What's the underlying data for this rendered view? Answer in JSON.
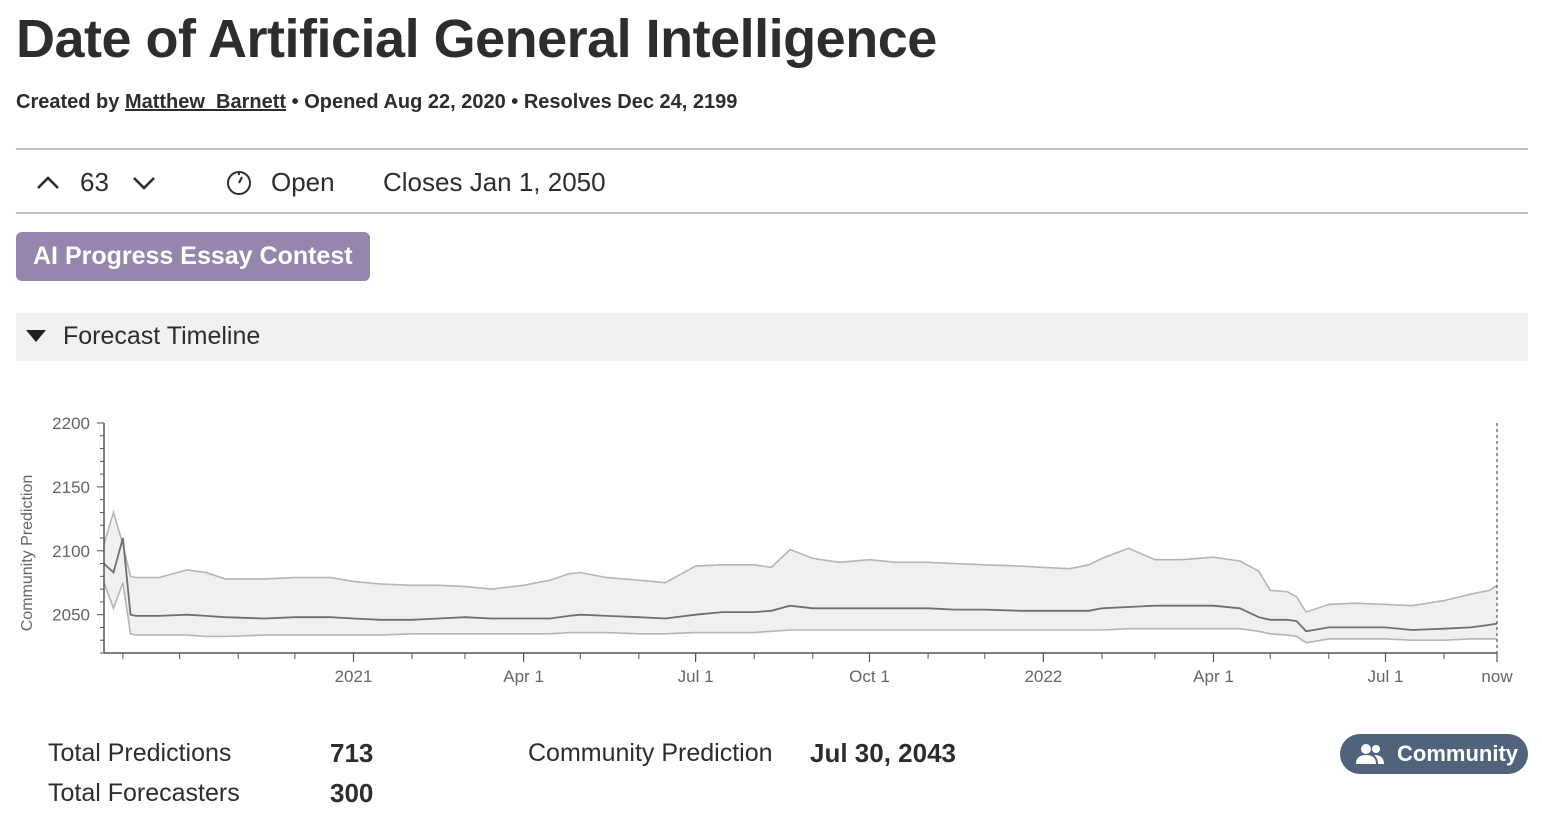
{
  "header": {
    "title": "Date of Artificial General Intelligence",
    "created_prefix": "Created by ",
    "author": "Matthew_Barnett",
    "opened": " • Opened Aug 22, 2020 • Resolves Dec 24, 2199"
  },
  "status_bar": {
    "votes": "63",
    "status": "Open",
    "closes": "Closes Jan 1, 2050"
  },
  "tag": {
    "label": "AI Progress Essay Contest"
  },
  "section": {
    "title": "Forecast Timeline"
  },
  "stats": {
    "total_predictions_label": "Total Predictions",
    "total_predictions": "713",
    "total_forecasters_label": "Total Forecasters",
    "total_forecasters": "300",
    "community_prediction_label": "Community Prediction",
    "community_prediction": "Jul 30, 2043",
    "community_button": "Community"
  },
  "colors": {
    "tag": "#9586ad",
    "community_button": "#4f647a",
    "median_line": "#6f6f6f",
    "band_line": "#b5b5b5",
    "band_fill": "#f0f0f0"
  },
  "chart_data": {
    "type": "area",
    "ylabel": "Community Prediction",
    "yticks": [
      2050,
      2100,
      2150,
      2200
    ],
    "ylim": [
      2020,
      2200
    ],
    "xlim": [
      "2020-08-22",
      "2022-08-29"
    ],
    "xticks": [
      {
        "date": "2021-01-01",
        "label": "2021"
      },
      {
        "date": "2021-04-01",
        "label": "Apr 1"
      },
      {
        "date": "2021-07-01",
        "label": "Jul 1"
      },
      {
        "date": "2021-10-01",
        "label": "Oct 1"
      },
      {
        "date": "2022-01-01",
        "label": "2022"
      },
      {
        "date": "2022-04-01",
        "label": "Apr 1"
      },
      {
        "date": "2022-07-01",
        "label": "Jul 1"
      },
      {
        "date": "2022-08-29",
        "label": "now"
      }
    ],
    "x": [
      "2020-08-22",
      "2020-08-27",
      "2020-09-01",
      "2020-09-05",
      "2020-09-08",
      "2020-09-20",
      "2020-10-05",
      "2020-10-15",
      "2020-10-25",
      "2020-11-15",
      "2020-12-01",
      "2020-12-20",
      "2021-01-01",
      "2021-01-15",
      "2021-02-01",
      "2021-02-15",
      "2021-03-01",
      "2021-03-15",
      "2021-04-01",
      "2021-04-15",
      "2021-04-25",
      "2021-05-01",
      "2021-05-15",
      "2021-06-01",
      "2021-06-15",
      "2021-07-01",
      "2021-07-15",
      "2021-08-01",
      "2021-08-10",
      "2021-08-20",
      "2021-09-01",
      "2021-09-15",
      "2021-10-01",
      "2021-10-15",
      "2021-11-01",
      "2021-11-15",
      "2021-12-01",
      "2021-12-20",
      "2022-01-01",
      "2022-01-15",
      "2022-01-25",
      "2022-02-01",
      "2022-02-15",
      "2022-03-01",
      "2022-03-15",
      "2022-04-01",
      "2022-04-15",
      "2022-04-25",
      "2022-05-01",
      "2022-05-10",
      "2022-05-15",
      "2022-05-20",
      "2022-06-01",
      "2022-06-15",
      "2022-07-01",
      "2022-07-15",
      "2022-08-01",
      "2022-08-15",
      "2022-08-25",
      "2022-08-29"
    ],
    "series": [
      {
        "values": [
          2105,
          2130,
          2105,
          2080,
          2079,
          2079,
          2085,
          2083,
          2078,
          2078,
          2079,
          2079,
          2076,
          2074,
          2073,
          2073,
          2072,
          2070,
          2073,
          2077,
          2082,
          2083,
          2079,
          2077,
          2075,
          2088,
          2089,
          2089,
          2087,
          2101,
          2094,
          2091,
          2093,
          2091,
          2091,
          2090,
          2089,
          2088,
          2087,
          2086,
          2089,
          2094,
          2102,
          2093,
          2093,
          2095,
          2092,
          2084,
          2069,
          2068,
          2064,
          2052,
          2058,
          2059,
          2058,
          2057,
          2061,
          2066,
          2069,
          2073
        ]
      },
      {
        "values": [
          2090,
          2083,
          2110,
          2050,
          2049,
          2049,
          2050,
          2049,
          2048,
          2047,
          2048,
          2048,
          2047,
          2046,
          2046,
          2047,
          2048,
          2047,
          2047,
          2047,
          2049,
          2050,
          2049,
          2048,
          2047,
          2050,
          2052,
          2052,
          2053,
          2057,
          2055,
          2055,
          2055,
          2055,
          2055,
          2054,
          2054,
          2053,
          2053,
          2053,
          2053,
          2055,
          2056,
          2057,
          2057,
          2057,
          2055,
          2048,
          2046,
          2046,
          2045,
          2037,
          2040,
          2040,
          2040,
          2038,
          2039,
          2040,
          2042,
          2043
        ]
      },
      {
        "values": [
          2075,
          2055,
          2075,
          2035,
          2034,
          2034,
          2034,
          2033,
          2033,
          2034,
          2034,
          2034,
          2034,
          2034,
          2035,
          2035,
          2035,
          2035,
          2035,
          2035,
          2036,
          2036,
          2036,
          2035,
          2035,
          2036,
          2036,
          2036,
          2037,
          2038,
          2038,
          2038,
          2038,
          2038,
          2038,
          2038,
          2038,
          2038,
          2038,
          2038,
          2038,
          2038,
          2039,
          2039,
          2039,
          2039,
          2039,
          2037,
          2035,
          2034,
          2033,
          2028,
          2031,
          2031,
          2031,
          2030,
          2030,
          2031,
          2031,
          2031
        ]
      }
    ]
  }
}
